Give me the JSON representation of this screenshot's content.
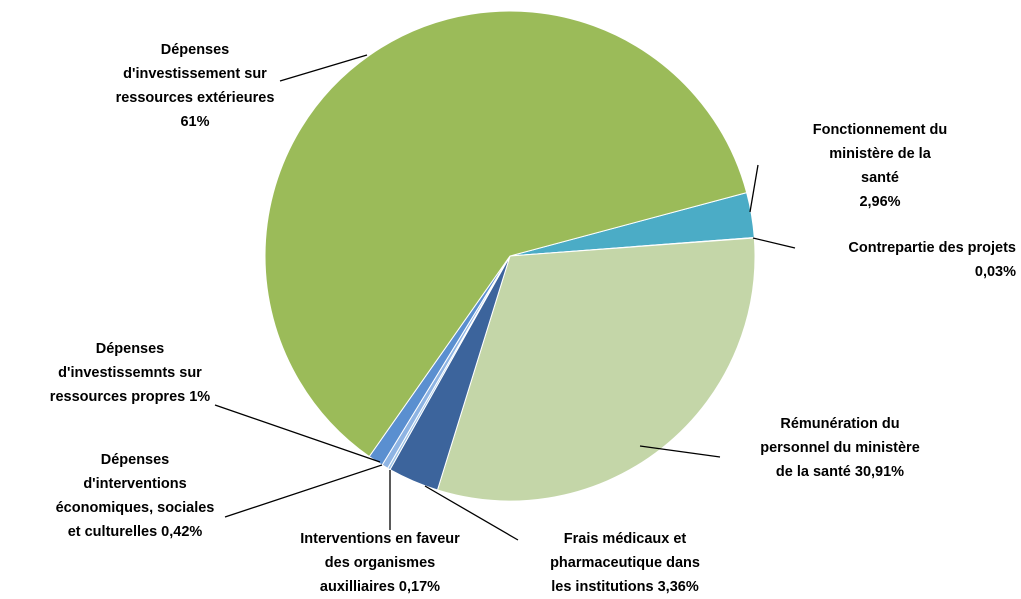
{
  "chart_data": {
    "type": "pie",
    "categories": [
      "Fonctionnement du\nministère de la santé",
      "Contrepartie des projets",
      "Rémunération du\npersonnel  du ministère\nde la santé",
      "Frais médicaux et\npharmaceutique dans\nles institutions",
      "Interventions en faveur\ndes organismes\nauxilliaires",
      "Dépenses\nd'interventions\néconomiques, sociales\net culturelles",
      "Dépenses\nd'investissemnts sur\nressources propres",
      "Dépenses\nd'investissement sur\nressources extérieures"
    ],
    "values": [
      2.96,
      0.03,
      30.91,
      3.36,
      0.17,
      0.42,
      1,
      61
    ],
    "value_labels": [
      "2,96%",
      "0,03%",
      "30,91%",
      "3,36%",
      "0,17%",
      "0,42%",
      "1%",
      "61%"
    ],
    "colors": [
      "#4bacc6",
      "#2c4d75",
      "#c4d6a8",
      "#3c649c",
      "#9dc3e6",
      "#8eb4e3",
      "#5a8fd0",
      "#9bbb59"
    ]
  }
}
